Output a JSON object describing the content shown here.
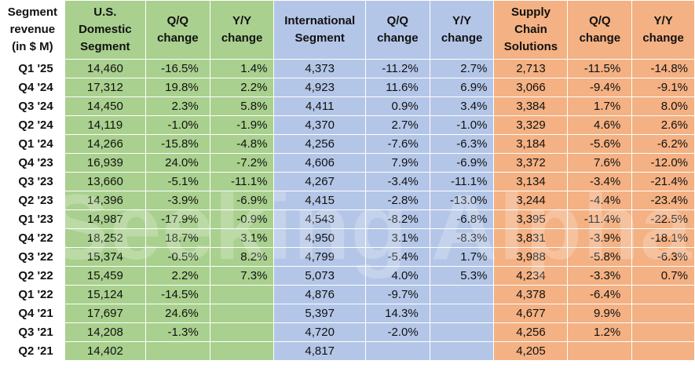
{
  "chart_data": {
    "type": "table",
    "title": "Segment revenue (in $ M)",
    "column_groups": [
      {
        "name": "U.S. Domestic Segment",
        "color": "#a9d08e"
      },
      {
        "name": "International Segment",
        "color": "#b4c6e7"
      },
      {
        "name": "Supply Chain Solutions",
        "color": "#f4b183"
      }
    ],
    "headers": [
      "Segment revenue (in $ M)",
      "U.S. Domestic Segment",
      "Q/Q change",
      "Y/Y change",
      "International Segment",
      "Q/Q change",
      "Y/Y change",
      "Supply Chain Solutions",
      "Q/Q change",
      "Y/Y change"
    ],
    "rows": [
      [
        "Q1 '25",
        "14,460",
        "-16.5%",
        "1.4%",
        "4,373",
        "-11.2%",
        "2.7%",
        "2,713",
        "-11.5%",
        "-14.8%"
      ],
      [
        "Q4 '24",
        "17,312",
        "19.8%",
        "2.2%",
        "4,923",
        "11.6%",
        "6.9%",
        "3,066",
        "-9.4%",
        "-9.1%"
      ],
      [
        "Q3 '24",
        "14,450",
        "2.3%",
        "5.8%",
        "4,411",
        "0.9%",
        "3.4%",
        "3,384",
        "1.7%",
        "8.0%"
      ],
      [
        "Q2 '24",
        "14,119",
        "-1.0%",
        "-1.9%",
        "4,370",
        "2.7%",
        "-1.0%",
        "3,329",
        "4.6%",
        "2.6%"
      ],
      [
        "Q1 '24",
        "14,266",
        "-15.8%",
        "-4.8%",
        "4,256",
        "-7.6%",
        "-6.3%",
        "3,184",
        "-5.6%",
        "-6.2%"
      ],
      [
        "Q4 '23",
        "16,939",
        "24.0%",
        "-7.2%",
        "4,606",
        "7.9%",
        "-6.9%",
        "3,372",
        "7.6%",
        "-12.0%"
      ],
      [
        "Q3 '23",
        "13,660",
        "-5.1%",
        "-11.1%",
        "4,267",
        "-3.4%",
        "-11.1%",
        "3,134",
        "-3.4%",
        "-21.4%"
      ],
      [
        "Q2 '23",
        "14,396",
        "-3.9%",
        "-6.9%",
        "4,415",
        "-2.8%",
        "-13.0%",
        "3,244",
        "-4.4%",
        "-23.4%"
      ],
      [
        "Q1 '23",
        "14,987",
        "-17.9%",
        "-0.9%",
        "4,543",
        "-8.2%",
        "-6.8%",
        "3,395",
        "-11.4%",
        "-22.5%"
      ],
      [
        "Q4 '22",
        "18,252",
        "18.7%",
        "3.1%",
        "4,950",
        "3.1%",
        "-8.3%",
        "3,831",
        "-3.9%",
        "-18.1%"
      ],
      [
        "Q3 '22",
        "15,374",
        "-0.5%",
        "8.2%",
        "4,799",
        "-5.4%",
        "1.7%",
        "3,988",
        "-5.8%",
        "-6.3%"
      ],
      [
        "Q2 '22",
        "15,459",
        "2.2%",
        "7.3%",
        "5,073",
        "4.0%",
        "5.3%",
        "4,234",
        "-3.3%",
        "0.7%"
      ],
      [
        "Q1 '22",
        "15,124",
        "-14.5%",
        "",
        "4,876",
        "-9.7%",
        "",
        "4,378",
        "-6.4%",
        ""
      ],
      [
        "Q4 '21",
        "17,697",
        "24.6%",
        "",
        "5,397",
        "14.3%",
        "",
        "4,677",
        "9.9%",
        ""
      ],
      [
        "Q3 '21",
        "14,208",
        "-1.3%",
        "",
        "4,720",
        "-2.0%",
        "",
        "4,256",
        "1.2%",
        ""
      ],
      [
        "Q2 '21",
        "14,402",
        "",
        "",
        "4,817",
        "",
        "",
        "4,205",
        "",
        ""
      ]
    ]
  },
  "watermark": "Seeking Alpha"
}
